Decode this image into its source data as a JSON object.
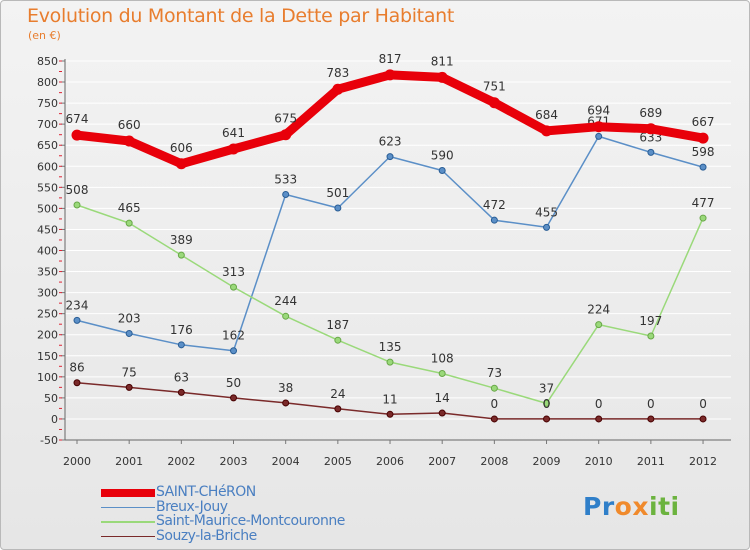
{
  "title": "Evolution du Montant de la Dette par Habitant",
  "unit_label": "(en €)",
  "logo": {
    "text": "Proxiti",
    "letters": [
      {
        "ch": "P",
        "color": "#2f7fc9"
      },
      {
        "ch": "r",
        "color": "#2f7fc9"
      },
      {
        "ch": "o",
        "color": "#f08a2c"
      },
      {
        "ch": "x",
        "color": "#f08a2c"
      },
      {
        "ch": "i",
        "color": "#6cb33f"
      },
      {
        "ch": "t",
        "color": "#6cb33f"
      },
      {
        "ch": "i",
        "color": "#6cb33f"
      }
    ]
  },
  "chart_data": {
    "type": "line",
    "title": "Evolution du Montant de la Dette par Habitant",
    "ylabel": "(en €)",
    "xlabel": "",
    "categories": [
      "2000",
      "2001",
      "2002",
      "2003",
      "2004",
      "2005",
      "2006",
      "2007",
      "2008",
      "2009",
      "2010",
      "2011",
      "2012"
    ],
    "ylim": [
      -50,
      850
    ],
    "y_ticks": [
      -50,
      0,
      50,
      100,
      150,
      200,
      250,
      300,
      350,
      400,
      450,
      500,
      550,
      600,
      650,
      700,
      750,
      800,
      850
    ],
    "grid": "horizontal",
    "legend_position": "bottom-left",
    "series": [
      {
        "name": "SAINT-CHéRON",
        "color": "#e8000a",
        "emphasis": true,
        "values": [
          674,
          660,
          606,
          641,
          675,
          783,
          817,
          811,
          751,
          684,
          694,
          689,
          667
        ]
      },
      {
        "name": "Breux-Jouy",
        "color": "#5b8fc7",
        "emphasis": false,
        "values": [
          234,
          203,
          176,
          162,
          533,
          501,
          623,
          590,
          472,
          455,
          671,
          633,
          598
        ]
      },
      {
        "name": "Saint-Maurice-Montcouronne",
        "color": "#9ad97a",
        "emphasis": false,
        "values": [
          508,
          465,
          389,
          313,
          244,
          187,
          135,
          108,
          73,
          37,
          224,
          197,
          477
        ]
      },
      {
        "name": "Souzy-la-Briche",
        "color": "#7a2a2a",
        "emphasis": false,
        "values": [
          86,
          75,
          63,
          50,
          38,
          24,
          11,
          14,
          0,
          0,
          0,
          0,
          0
        ]
      }
    ]
  }
}
